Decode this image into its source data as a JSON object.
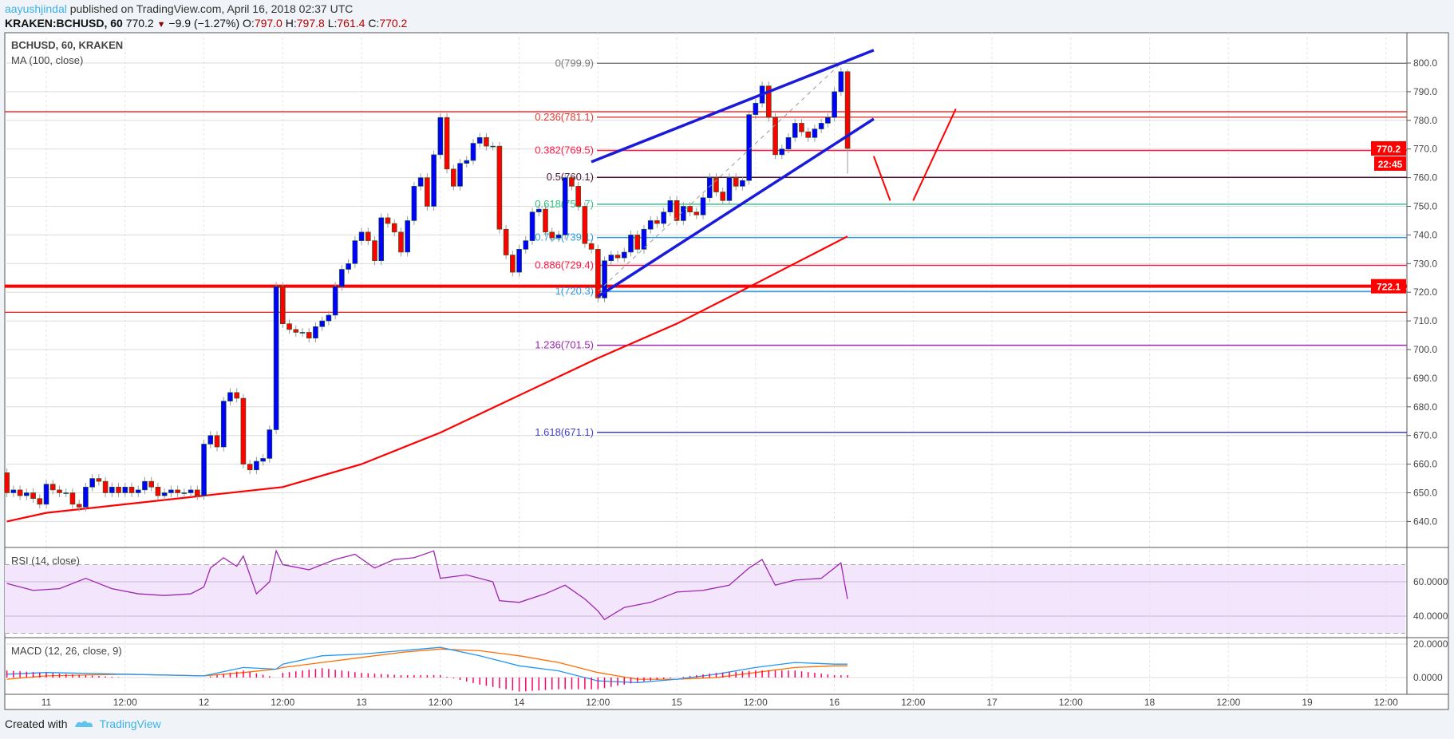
{
  "header": {
    "author": "aayushjindal",
    "published": "published on TradingView.com, April 16, 2018 02:37 UTC",
    "symbol": "KRAKEN:BCHUSD, 60",
    "last": "770.2",
    "change": "−9.9 (−1.27%)",
    "o_label": "O:",
    "o": "797.0",
    "h_label": "H:",
    "h": "797.8",
    "l_label": "L:",
    "l": "761.4",
    "c_label": "C:",
    "c": "770.2"
  },
  "legend": {
    "title": "BCHUSD, 60, KRAKEN",
    "ma": "MA (100, close)",
    "rsi": "RSI (14, close)",
    "macd": "MACD (12, 26, close, 9)"
  },
  "footer": {
    "created": "Created with",
    "brand": "TradingView"
  },
  "colors": {
    "up": "#0000ff",
    "down": "#ff0000",
    "ma": "#ff0000",
    "channel": "#1a1adb",
    "rsi": "#9c27b0",
    "macd": "#2196f3",
    "signal": "#ff6d00",
    "hist": "#ff0066"
  },
  "chart_data": {
    "type": "candlestick",
    "price_axis": {
      "min": 634,
      "max": 806,
      "ticks": [
        800,
        790,
        780,
        770,
        760,
        750,
        740,
        730,
        720,
        710,
        700,
        690,
        680,
        670,
        660,
        650,
        640
      ]
    },
    "time_axis": {
      "labels": [
        "11",
        "12:00",
        "12",
        "12:00",
        "13",
        "12:00",
        "14",
        "12:00",
        "15",
        "12:00",
        "16",
        "12:00",
        "17",
        "12:00",
        "18",
        "12:00",
        "19",
        "12:00"
      ]
    },
    "first_open": 657,
    "first_candle": "04-10 18:00",
    "closes": [
      650,
      651,
      649,
      650,
      648,
      646,
      653,
      651,
      650,
      650,
      646,
      645,
      652,
      655,
      654,
      650,
      652,
      650,
      652,
      650,
      651,
      654,
      652,
      649,
      650,
      651,
      650,
      650,
      651,
      649,
      667,
      670,
      666,
      682,
      685,
      683,
      660,
      658,
      661,
      662,
      672,
      722,
      709,
      707,
      706,
      706,
      704,
      708,
      710,
      712,
      722,
      728,
      730,
      738,
      741,
      738,
      731,
      746,
      744,
      741,
      734,
      745,
      757,
      760,
      750,
      768,
      781,
      763,
      757,
      765,
      766,
      772,
      774,
      771,
      771,
      742,
      733,
      727,
      735,
      738,
      748,
      749,
      741,
      739,
      740,
      760,
      757,
      750,
      737,
      735,
      718,
      731,
      733,
      732,
      734,
      740,
      735,
      742,
      745,
      744,
      748,
      752,
      745,
      750,
      748,
      747,
      753,
      760,
      755,
      752,
      760,
      757,
      759,
      782,
      786,
      792,
      781,
      768,
      770,
      774,
      779,
      776,
      774,
      777,
      779,
      781,
      790,
      797,
      770.2
    ],
    "ma100": [
      [
        "04-10 18:00",
        640
      ],
      [
        "04-11 00:00",
        643
      ],
      [
        "04-11 12:00",
        646
      ],
      [
        "04-12 00:00",
        649
      ],
      [
        "04-12 12:00",
        652
      ],
      [
        "04-13 00:00",
        660
      ],
      [
        "04-13 12:00",
        671
      ],
      [
        "04-14 00:00",
        684
      ],
      [
        "04-14 12:00",
        697
      ],
      [
        "04-15 00:00",
        709
      ],
      [
        "04-15 12:00",
        723
      ],
      [
        "04-16 02:00",
        739.5
      ]
    ],
    "fib_levels": [
      {
        "label": "0(799.9)",
        "value": 799.9,
        "color": "#787878"
      },
      {
        "label": "0.236(781.1)",
        "value": 781.1,
        "color": "#e53935"
      },
      {
        "label": "0.382(769.5)",
        "value": 769.5,
        "color": "#ff1744"
      },
      {
        "label": "0.5(760.1)",
        "value": 760.1,
        "color": "#4a1030"
      },
      {
        "label": "0.618(750.7)",
        "value": 750.7,
        "color": "#26c281"
      },
      {
        "label": "0.764(739.1)",
        "value": 739.1,
        "color": "#2b9ae0"
      },
      {
        "label": "0.886(729.4)",
        "value": 729.4,
        "color": "#ff1744"
      },
      {
        "label": "1(720.3)",
        "value": 720.3,
        "color": "#2b9ae0"
      },
      {
        "label": "1.236(701.5)",
        "value": 701.5,
        "color": "#9c27b0"
      },
      {
        "label": "1.618(671.1)",
        "value": 671.1,
        "color": "#3f3fcf"
      }
    ],
    "horizontal_lines": [
      {
        "value": 783,
        "style": "thin"
      },
      {
        "value": 722.1,
        "style": "thick"
      },
      {
        "value": 713,
        "style": "thin"
      }
    ],
    "price_tags": {
      "last": "770.2",
      "countdown": "22:45",
      "level": "722.1"
    },
    "channel": {
      "upper": [
        [
          "04-14 11:00",
          765.5
        ],
        [
          "04-16 06:00",
          804.5
        ]
      ],
      "lower": [
        [
          "04-14 12:00",
          718.5
        ],
        [
          "04-16 06:00",
          780.5
        ]
      ]
    },
    "fib_trend": [
      [
        "04-14 12:00",
        720.3
      ],
      [
        "04-16 01:00",
        799.9
      ]
    ],
    "projection": [
      [
        [
          "04-16 06:00",
          767.5
        ],
        [
          "04-16 08:30",
          752
        ]
      ],
      [
        [
          "04-16 12:00",
          752
        ],
        [
          "04-16 18:30",
          784
        ]
      ]
    ],
    "rsi": {
      "ticks": [
        60,
        40
      ],
      "band": [
        30,
        70
      ],
      "points": [
        [
          "04-10 18:00",
          59
        ],
        [
          "04-10 22:00",
          55
        ],
        [
          "04-11 02:00",
          56
        ],
        [
          "04-11 06:00",
          62
        ],
        [
          "04-11 10:00",
          56
        ],
        [
          "04-11 14:00",
          53
        ],
        [
          "04-11 18:00",
          52
        ],
        [
          "04-11 22:00",
          53
        ],
        [
          "04-12 00:00",
          57
        ],
        [
          "04-12 01:00",
          68
        ],
        [
          "04-12 03:00",
          74
        ],
        [
          "04-12 05:00",
          69
        ],
        [
          "04-12 06:00",
          75
        ],
        [
          "04-12 08:00",
          53
        ],
        [
          "04-12 10:00",
          60
        ],
        [
          "04-12 11:00",
          78
        ],
        [
          "04-12 12:00",
          70
        ],
        [
          "04-12 16:00",
          67
        ],
        [
          "04-12 20:00",
          73
        ],
        [
          "04-12 23:00",
          76
        ],
        [
          "04-13 02:00",
          68
        ],
        [
          "04-13 05:00",
          73
        ],
        [
          "04-13 08:00",
          74
        ],
        [
          "04-13 11:00",
          78
        ],
        [
          "04-13 12:00",
          62
        ],
        [
          "04-13 16:00",
          64
        ],
        [
          "04-13 20:00",
          60
        ],
        [
          "04-13 21:00",
          49
        ],
        [
          "04-14 00:00",
          48
        ],
        [
          "04-14 04:00",
          53
        ],
        [
          "04-14 07:00",
          58
        ],
        [
          "04-14 10:00",
          50
        ],
        [
          "04-14 12:00",
          43
        ],
        [
          "04-14 13:00",
          38
        ],
        [
          "04-14 16:00",
          45
        ],
        [
          "04-14 20:00",
          48
        ],
        [
          "04-15 00:00",
          54
        ],
        [
          "04-15 04:00",
          55
        ],
        [
          "04-15 08:00",
          58
        ],
        [
          "04-15 11:00",
          68
        ],
        [
          "04-15 13:00",
          73
        ],
        [
          "04-15 15:00",
          58
        ],
        [
          "04-15 18:00",
          61
        ],
        [
          "04-15 22:00",
          62
        ],
        [
          "04-16 01:00",
          71
        ],
        [
          "04-16 02:00",
          50
        ]
      ]
    },
    "macd": {
      "ticks": [
        20,
        0
      ],
      "points": [
        [
          "04-10 18:00",
          2,
          -1
        ],
        [
          "04-11 00:00",
          3,
          1
        ],
        [
          "04-11 12:00",
          2,
          2
        ],
        [
          "04-12 00:00",
          1,
          1
        ],
        [
          "04-12 06:00",
          6,
          3
        ],
        [
          "04-12 11:00",
          5,
          5
        ],
        [
          "04-12 12:00",
          8,
          6
        ],
        [
          "04-12 18:00",
          13,
          9
        ],
        [
          "04-13 00:00",
          14,
          12
        ],
        [
          "04-13 06:00",
          16,
          15
        ],
        [
          "04-13 12:00",
          18,
          17
        ],
        [
          "04-13 18:00",
          13,
          16
        ],
        [
          "04-14 00:00",
          7,
          13
        ],
        [
          "04-14 06:00",
          4,
          9
        ],
        [
          "04-14 12:00",
          -2,
          3
        ],
        [
          "04-14 18:00",
          -3,
          -1
        ],
        [
          "04-15 00:00",
          -1,
          -1
        ],
        [
          "04-15 06:00",
          2,
          0
        ],
        [
          "04-15 12:00",
          6,
          3
        ],
        [
          "04-15 18:00",
          9,
          6
        ],
        [
          "04-16 00:00",
          8,
          7
        ],
        [
          "04-16 02:00",
          8,
          7
        ]
      ]
    }
  }
}
